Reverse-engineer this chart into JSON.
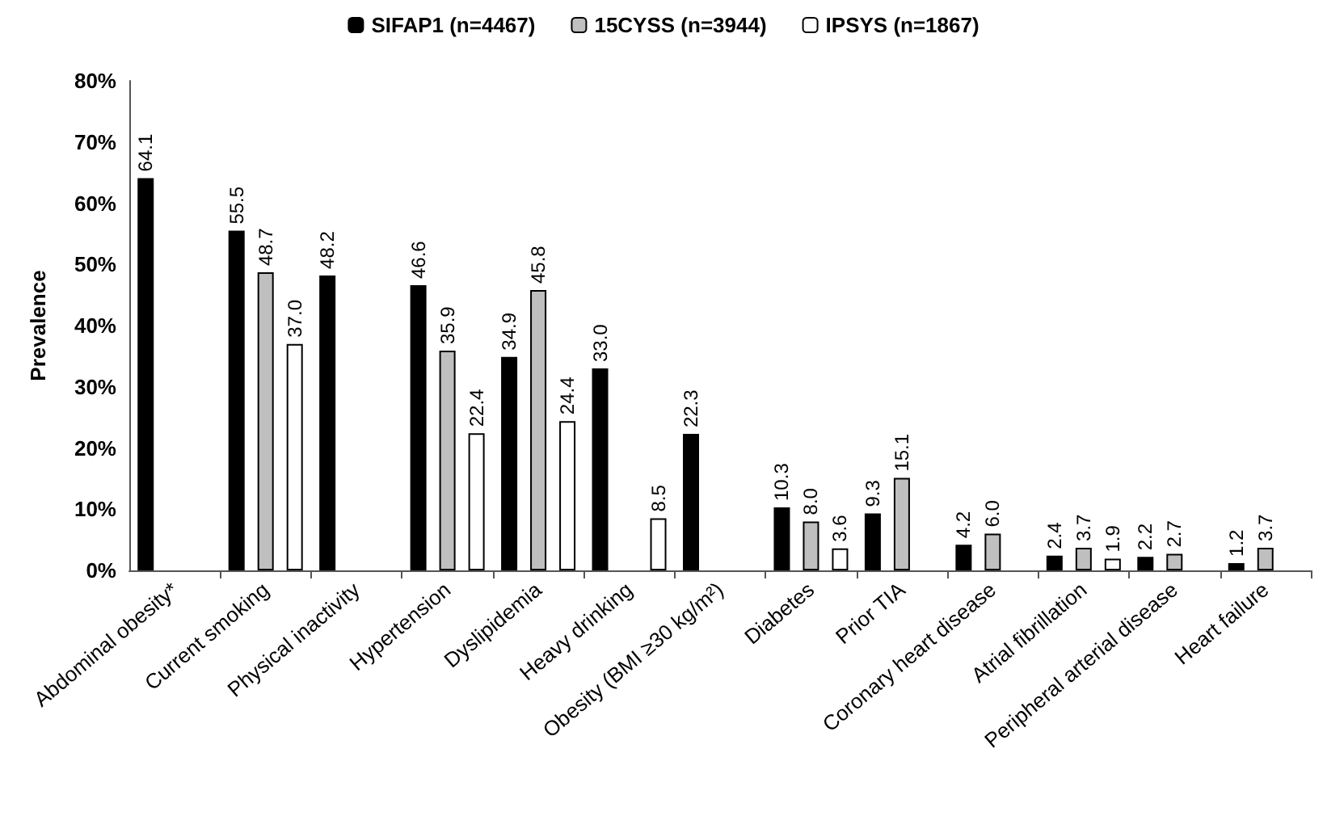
{
  "chart_data": {
    "type": "bar",
    "ylabel": "Prevalence",
    "categories": [
      "Abdominal obesity*",
      "Current smoking",
      "Physical inactivity",
      "Hypertension",
      "Dyslipidemia",
      "Heavy drinking",
      "Obesity (BMI ≥30 kg/m²)",
      "Diabetes",
      "Prior TIA",
      "Coronary heart disease",
      "Atrial fibrillation",
      "Peripheral arterial disease",
      "Heart failure"
    ],
    "series": [
      {
        "name": "SIFAP1 (n=4467)",
        "color": "#000000",
        "values": [
          64.1,
          55.5,
          48.2,
          46.6,
          34.9,
          33.0,
          22.3,
          10.3,
          9.3,
          4.2,
          2.4,
          2.2,
          1.2
        ],
        "value_labels": [
          "64.1",
          "55.5",
          "48.2",
          "46.6",
          "34.9",
          "33.0",
          "22.3",
          "10.3",
          "9.3",
          "4.2",
          "2.4",
          "2.2",
          "1.2"
        ]
      },
      {
        "name": "15CYSS (n=3944)",
        "color": "#bfbfbf",
        "values": [
          null,
          48.7,
          null,
          35.9,
          45.8,
          null,
          null,
          8.0,
          15.1,
          6.0,
          3.7,
          2.7,
          3.7
        ],
        "value_labels": [
          null,
          "48.7",
          null,
          "35.9",
          "45.8",
          null,
          null,
          "8.0",
          "15.1",
          "6.0",
          "3.7",
          "2.7",
          "3.7"
        ]
      },
      {
        "name": "IPSYS (n=1867)",
        "color": "#ffffff",
        "values": [
          null,
          37.0,
          null,
          22.4,
          24.4,
          8.5,
          null,
          3.6,
          null,
          null,
          1.9,
          null,
          null
        ],
        "value_labels": [
          null,
          "37.0",
          null,
          "22.4",
          "24.4",
          "8.5",
          null,
          "3.6",
          null,
          null,
          "1.9",
          null,
          null
        ]
      }
    ],
    "ylim": [
      0,
      80
    ],
    "yticks": [
      {
        "value": 0,
        "label": "0%"
      },
      {
        "value": 10,
        "label": "10%"
      },
      {
        "value": 20,
        "label": "20%"
      },
      {
        "value": 30,
        "label": "30%"
      },
      {
        "value": 40,
        "label": "40%"
      },
      {
        "value": 50,
        "label": "50%"
      },
      {
        "value": 60,
        "label": "60%"
      },
      {
        "value": 70,
        "label": "70%"
      },
      {
        "value": 80,
        "label": "80%"
      }
    ],
    "grid": false,
    "legend": "top"
  }
}
